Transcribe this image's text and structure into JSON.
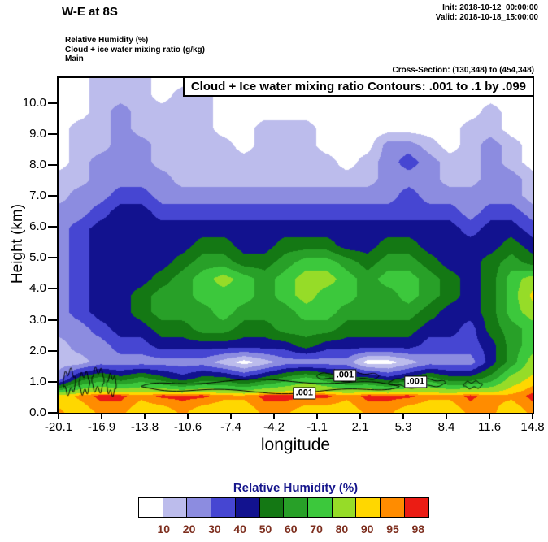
{
  "header": {
    "title": "W-E at 8S",
    "init": "Init: 2018-10-12_00:00:00",
    "valid": "Valid: 2018-10-18_15:00:00"
  },
  "legend_block": {
    "line1": "Relative Humidity   (%)",
    "line2": "Cloud + ice water mixing ratio   (g/kg)",
    "line3": "Main"
  },
  "cross_section": "Cross-Section: (130,348) to (454,348)",
  "plot": {
    "contour_title": "Cloud + Ice water mixing ratio Contours: .001 to .1 by .099",
    "xlabel": "longitude",
    "ylabel": "Height (km)",
    "x_ticks": [
      "-20.1",
      "-16.9",
      "-13.8",
      "-10.6",
      "-7.4",
      "-4.2",
      "-1.1",
      "2.1",
      "5.3",
      "8.4",
      "11.6",
      "14.8"
    ],
    "y_ticks": [
      "0.0",
      "1.0",
      "2.0",
      "3.0",
      "4.0",
      "5.0",
      "6.0",
      "7.0",
      "8.0",
      "9.0",
      "10.0"
    ],
    "contour_labels": [
      {
        "text": ".001",
        "lon": -2.0,
        "z": 0.62
      },
      {
        "text": ".001",
        "lon": 1.0,
        "z": 1.2
      },
      {
        "text": ".001",
        "lon": 6.2,
        "z": 1.0
      }
    ]
  },
  "colorbar": {
    "title": "Relative Humidity  (%)",
    "title_color": "#16168c",
    "label_color": "#7d2e1e",
    "labels": [
      "10",
      "20",
      "30",
      "40",
      "50",
      "60",
      "70",
      "80",
      "90",
      "95",
      "98"
    ],
    "colors": [
      "#ffffff",
      "#bcbcec",
      "#8c8ce0",
      "#4646d2",
      "#12128f",
      "#147814",
      "#28a028",
      "#3cc83c",
      "#96dc28",
      "#ffd700",
      "#ff8c00",
      "#eb1c14"
    ]
  },
  "chart_data": {
    "type": "heatmap",
    "title": "W-E at 8S",
    "field": "Relative Humidity (%)",
    "overlay_contours": "Cloud + Ice water mixing ratio (g/kg), contours .001 to .1 by .099",
    "xlabel": "longitude",
    "ylabel": "Height (km)",
    "x_ticks": [
      -20.1,
      -16.9,
      -13.8,
      -10.6,
      -7.4,
      -4.2,
      -1.1,
      2.1,
      5.3,
      8.4,
      11.6,
      14.8
    ],
    "x_range": [
      -20.1,
      14.8
    ],
    "z_range_km": [
      0,
      10.8
    ],
    "levels": [
      10,
      20,
      30,
      40,
      50,
      60,
      70,
      80,
      90,
      95,
      98
    ],
    "colors": [
      "#ffffff",
      "#bcbcec",
      "#8c8ce0",
      "#4646d2",
      "#12128f",
      "#147814",
      "#28a028",
      "#3cc83c",
      "#96dc28",
      "#ffd700",
      "#ff8c00",
      "#eb1c14"
    ],
    "grid_note": "Estimated relative humidity (%) on a 24 (longitude) x 21 (height) grid; rows ordered top (10.8 km) to bottom (0 km)",
    "grid": [
      [
        5,
        5,
        15,
        15,
        15,
        5,
        5,
        15,
        5,
        5,
        5,
        5,
        5,
        5,
        5,
        5,
        5,
        5,
        5,
        5,
        5,
        5,
        5,
        5
      ],
      [
        5,
        5,
        15,
        15,
        15,
        5,
        15,
        15,
        5,
        5,
        5,
        5,
        5,
        5,
        5,
        5,
        5,
        5,
        5,
        5,
        5,
        5,
        5,
        5
      ],
      [
        5,
        5,
        15,
        25,
        15,
        15,
        15,
        15,
        5,
        5,
        5,
        5,
        5,
        5,
        5,
        5,
        5,
        5,
        5,
        5,
        5,
        15,
        5,
        5
      ],
      [
        5,
        15,
        15,
        25,
        15,
        15,
        15,
        15,
        5,
        5,
        15,
        15,
        15,
        5,
        5,
        5,
        5,
        5,
        5,
        5,
        15,
        15,
        5,
        5
      ],
      [
        5,
        15,
        15,
        25,
        25,
        15,
        15,
        15,
        15,
        5,
        15,
        15,
        15,
        5,
        5,
        5,
        25,
        25,
        15,
        5,
        15,
        25,
        15,
        5
      ],
      [
        5,
        15,
        25,
        25,
        25,
        15,
        15,
        15,
        15,
        15,
        15,
        15,
        15,
        15,
        5,
        15,
        25,
        35,
        25,
        15,
        15,
        25,
        15,
        5
      ],
      [
        15,
        15,
        25,
        25,
        25,
        25,
        15,
        15,
        15,
        15,
        15,
        15,
        15,
        15,
        15,
        15,
        25,
        25,
        25,
        15,
        15,
        25,
        25,
        15
      ],
      [
        15,
        25,
        25,
        35,
        35,
        25,
        25,
        25,
        25,
        25,
        25,
        25,
        25,
        25,
        25,
        25,
        25,
        35,
        25,
        25,
        25,
        25,
        25,
        15
      ],
      [
        25,
        25,
        35,
        45,
        45,
        35,
        35,
        35,
        35,
        35,
        35,
        35,
        35,
        35,
        35,
        35,
        35,
        35,
        35,
        35,
        25,
        35,
        35,
        25
      ],
      [
        25,
        35,
        45,
        45,
        45,
        45,
        45,
        45,
        45,
        45,
        45,
        45,
        45,
        45,
        45,
        45,
        45,
        45,
        45,
        45,
        35,
        45,
        45,
        35
      ],
      [
        25,
        35,
        45,
        45,
        45,
        45,
        45,
        55,
        55,
        45,
        45,
        55,
        55,
        55,
        45,
        45,
        55,
        55,
        45,
        45,
        45,
        45,
        55,
        45
      ],
      [
        25,
        35,
        45,
        45,
        45,
        45,
        55,
        65,
        65,
        55,
        55,
        65,
        75,
        75,
        65,
        55,
        65,
        65,
        55,
        45,
        45,
        55,
        65,
        55
      ],
      [
        25,
        35,
        45,
        45,
        45,
        55,
        65,
        75,
        85,
        75,
        65,
        75,
        85,
        85,
        75,
        65,
        75,
        75,
        65,
        55,
        45,
        55,
        75,
        85
      ],
      [
        25,
        35,
        45,
        45,
        55,
        65,
        65,
        75,
        75,
        75,
        65,
        75,
        85,
        75,
        75,
        65,
        65,
        75,
        65,
        55,
        45,
        55,
        75,
        92
      ],
      [
        25,
        35,
        45,
        45,
        55,
        65,
        65,
        65,
        75,
        65,
        65,
        65,
        75,
        75,
        65,
        65,
        65,
        65,
        55,
        45,
        45,
        55,
        75,
        85
      ],
      [
        25,
        25,
        35,
        45,
        45,
        55,
        55,
        65,
        65,
        55,
        55,
        65,
        65,
        65,
        55,
        55,
        55,
        55,
        45,
        45,
        35,
        55,
        65,
        75
      ],
      [
        15,
        25,
        25,
        35,
        35,
        45,
        45,
        45,
        45,
        45,
        45,
        45,
        55,
        45,
        45,
        45,
        45,
        45,
        35,
        35,
        35,
        45,
        65,
        75
      ],
      [
        15,
        15,
        25,
        25,
        25,
        25,
        25,
        25,
        15,
        5,
        15,
        25,
        25,
        25,
        25,
        5,
        5,
        15,
        25,
        25,
        25,
        45,
        65,
        85
      ],
      [
        25,
        55,
        65,
        55,
        65,
        55,
        45,
        55,
        55,
        45,
        55,
        65,
        75,
        65,
        55,
        55,
        45,
        55,
        65,
        55,
        55,
        65,
        85,
        92
      ],
      [
        92,
        96,
        99,
        99,
        96,
        99,
        99,
        99,
        96,
        96,
        99,
        99,
        99,
        99,
        96,
        99,
        99,
        99,
        96,
        96,
        99,
        96,
        96,
        99
      ],
      [
        96,
        92,
        96,
        96,
        92,
        92,
        96,
        92,
        92,
        92,
        96,
        96,
        92,
        92,
        92,
        96,
        96,
        92,
        92,
        92,
        96,
        96,
        92,
        96
      ]
    ],
    "cloud_regions": [
      {
        "lon": -19.3,
        "z": 1.0,
        "rx": 0.45,
        "rz": 0.33
      },
      {
        "lon": -18.2,
        "z": 0.95,
        "rx": 0.4,
        "rz": 0.3
      },
      {
        "lon": -17.2,
        "z": 1.05,
        "rx": 0.45,
        "rz": 0.33
      },
      {
        "lon": -16.2,
        "z": 0.9,
        "rx": 0.35,
        "rz": 0.28
      },
      {
        "lon": -4.5,
        "z": 0.85,
        "rx": 9.5,
        "rz": 0.17
      },
      {
        "lon": 1.2,
        "z": 1.18,
        "rx": 2.3,
        "rz": 0.13
      },
      {
        "lon": 6.3,
        "z": 0.97,
        "rx": 2.1,
        "rz": 0.13
      },
      {
        "lon": 10.4,
        "z": 0.9,
        "rx": 0.7,
        "rz": 0.1
      }
    ]
  }
}
